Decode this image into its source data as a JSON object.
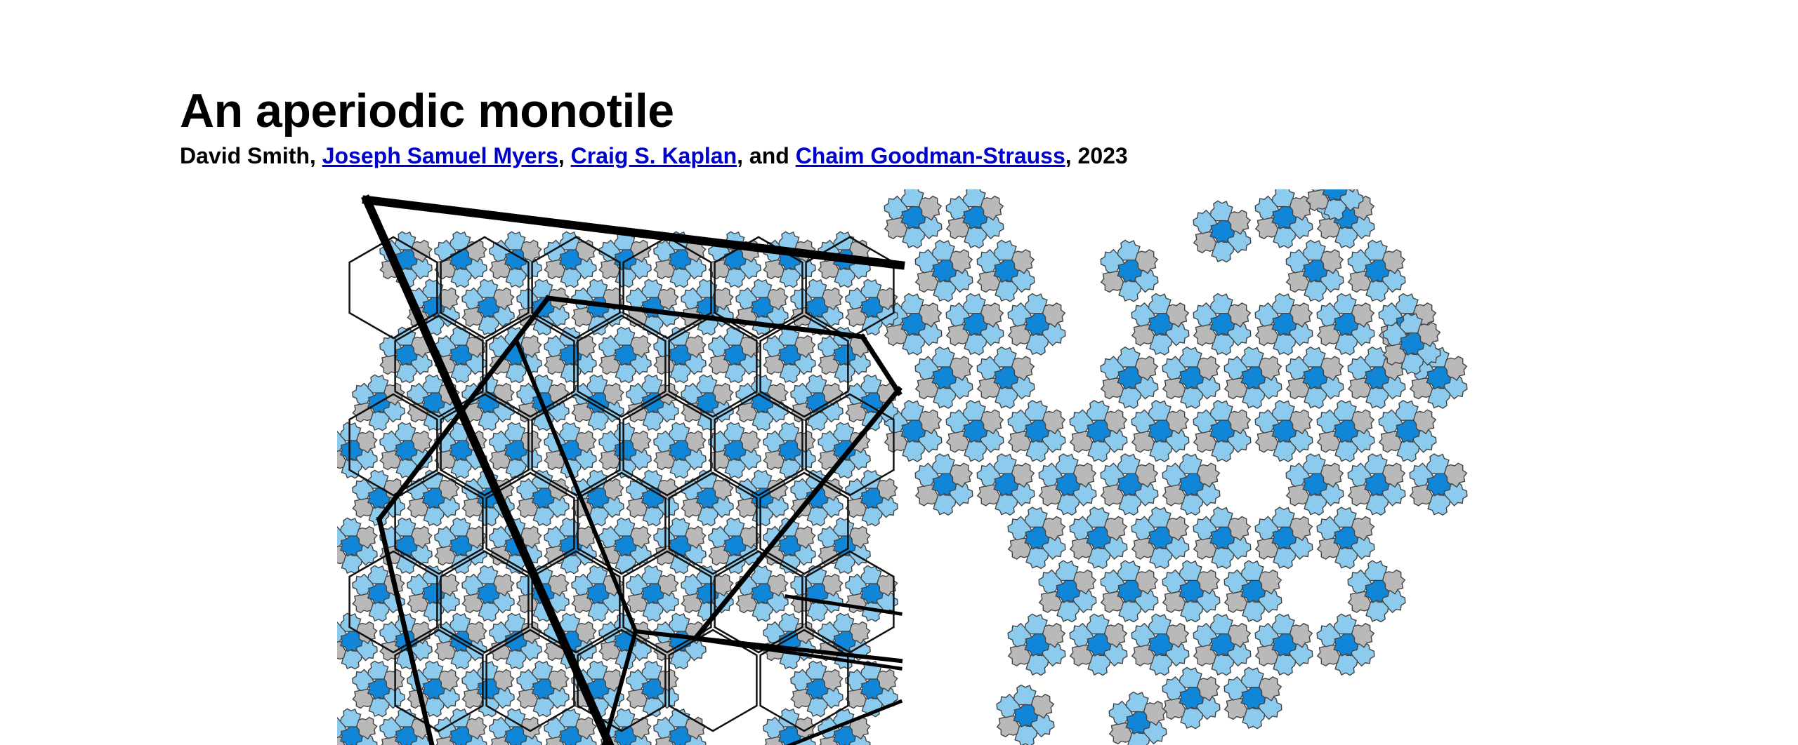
{
  "title": "An aperiodic monotile",
  "byline": {
    "author1": "David Smith",
    "sep1": ", ",
    "author2": "Joseph Samuel Myers",
    "sep2": ", ",
    "author3": "Craig S. Kaplan",
    "sep3": ", and ",
    "author4": "Chaim Goodman-Strauss",
    "sep4": ", ",
    "year": "2023"
  },
  "figure": {
    "colors": {
      "dark_blue": "#0f86d8",
      "light_blue": "#8ccbee",
      "gray": "#b9b9b9",
      "white_tile": "#ffffff",
      "outline": "#444444",
      "frame": "#000000"
    }
  }
}
